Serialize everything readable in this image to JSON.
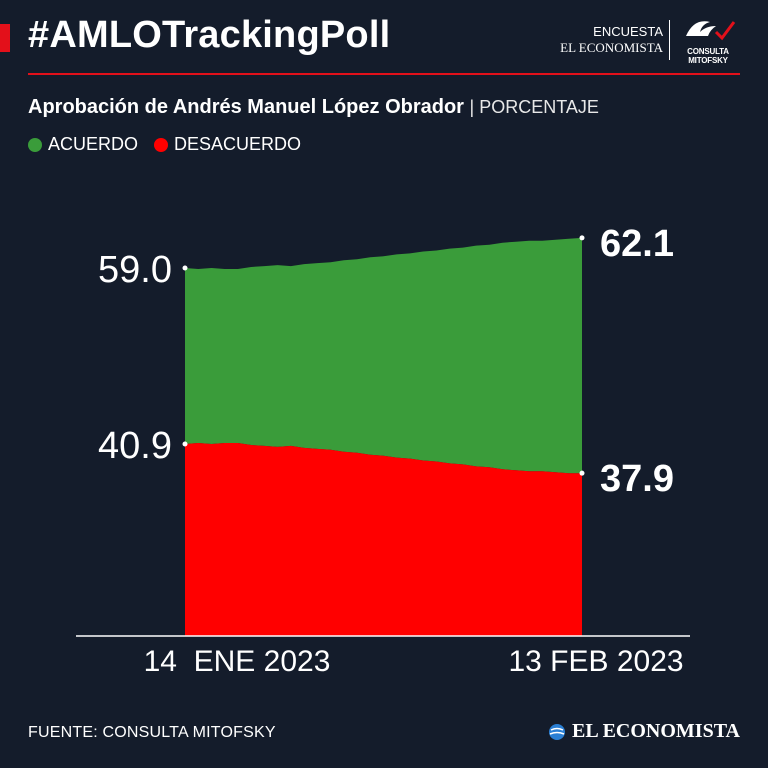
{
  "header": {
    "hashtag": "#AMLOTrackingPoll",
    "brand_line1": "ENCUESTA",
    "brand_line2": "EL ECONOMISTA",
    "partner_label": "CONSULTA MITOFSKY"
  },
  "chart_data": {
    "type": "area",
    "title": "Aprobación de Andrés Manuel López Obrador",
    "unit": "PORCENTAJE",
    "x_labels": [
      "14  ENE 2023",
      "13 FEB 2023"
    ],
    "series": [
      {
        "name": "ACUERDO",
        "color": "#3a9c3a",
        "values": [
          59.0,
          58.9,
          59.0,
          58.9,
          58.9,
          59.1,
          59.2,
          59.3,
          59.2,
          59.4,
          59.5,
          59.6,
          59.8,
          59.9,
          60.1,
          60.2,
          60.4,
          60.5,
          60.7,
          60.8,
          61.0,
          61.1,
          61.3,
          61.4,
          61.6,
          61.7,
          61.8,
          61.8,
          61.9,
          62.0,
          62.1
        ]
      },
      {
        "name": "DESACUERDO",
        "color": "#ff0000",
        "values": [
          40.9,
          41.0,
          40.9,
          41.0,
          41.0,
          40.8,
          40.7,
          40.6,
          40.7,
          40.5,
          40.4,
          40.3,
          40.1,
          40.0,
          39.8,
          39.7,
          39.5,
          39.4,
          39.2,
          39.1,
          38.9,
          38.8,
          38.6,
          38.5,
          38.3,
          38.2,
          38.1,
          38.1,
          38.0,
          37.9,
          37.9
        ]
      }
    ],
    "labels": {
      "acuerdo_start": "59.0",
      "acuerdo_end": "62.1",
      "desacuerdo_start": "40.9",
      "desacuerdo_end": "37.9"
    }
  },
  "footer": {
    "source": "FUENTE: CONSULTA MITOFSKY",
    "logo": "EL ECONOMISTA"
  },
  "colors": {
    "background": "#141c2b",
    "accent": "#e3101a",
    "acuerdo": "#3a9c3a",
    "desacuerdo": "#ff0000"
  }
}
